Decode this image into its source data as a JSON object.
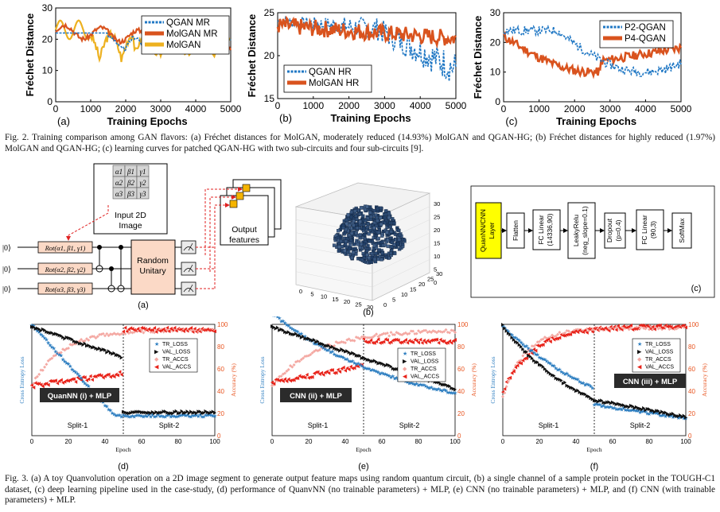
{
  "fig2": {
    "caption": "Fig. 2.  Training comparison among GAN flavors: (a) Fréchet distances for MolGAN, moderately reduced (14.93%) MolGAN and QGAN-HG; (b) Fréchet distances for highly reduced (1.97%) MolGAN and QGAN-HG; (c) learning curves for patched QGAN-HG with two sub-circuits and four sub-circuits [9].",
    "panels": [
      {
        "label": "(a)",
        "ylabel": "Fréchet Distance",
        "xlabel": "Training Epochs",
        "yticks": [
          "0",
          "10",
          "20",
          "30"
        ],
        "xticks": [
          "0",
          "1000",
          "2000",
          "3000",
          "4000",
          "5000"
        ],
        "legend": [
          "QGAN MR",
          "MolGAN MR",
          "MolGAN"
        ]
      },
      {
        "label": "(b)",
        "ylabel": "Fréchet Distance",
        "xlabel": "Training Epochs",
        "yticks": [
          "15",
          "20",
          "25"
        ],
        "xticks": [
          "0",
          "1000",
          "2000",
          "3000",
          "4000",
          "5000"
        ],
        "legend": [
          "QGAN HR",
          "MolGAN HR"
        ]
      },
      {
        "label": "(c)",
        "ylabel": "Fréchet Distance",
        "xlabel": "Training Epochs",
        "yticks": [
          "0",
          "10",
          "20",
          "30"
        ],
        "xticks": [
          "0",
          "1000",
          "2000",
          "3000",
          "4000",
          "5000"
        ],
        "legend": [
          "P2-QGAN",
          "P4-QGAN"
        ]
      }
    ]
  },
  "fig3": {
    "caption": "Fig. 3.  (a) A toy Quanvolution operation on a 2D image segment to generate output feature maps using random quantum circuit, (b) a single channel of a sample protein pocket in the TOUGH-C1 dataset, (c) deep learning pipeline used in the case-study, (d) performance of QuanvNN (no trainable parameters) + MLP, (e) CNN (no trainable parameters) + MLP, and (f) CNN (with trainable parameters) + MLP.",
    "a": {
      "matrix": [
        [
          "α1",
          "β1",
          "γ1"
        ],
        [
          "α2",
          "β2",
          "γ2"
        ],
        [
          "α3",
          "β3",
          "γ3"
        ]
      ],
      "input_label": "Input 2D Image",
      "kets": [
        "|0⟩",
        "|0⟩",
        "|0⟩"
      ],
      "gates": [
        "Rot(α1, β1, γ1)",
        "Rot(α2, β2, γ2)",
        "Rot(α3, β3, γ3)"
      ],
      "unitary": "Random Unitary",
      "output_label": "Output features",
      "label": "(a)"
    },
    "b": {
      "label": "(b)",
      "zticks": [
        "0",
        "5",
        "10",
        "15",
        "20",
        "25",
        "30"
      ],
      "xticks": [
        "0",
        "5",
        "10",
        "15",
        "20",
        "25",
        "30"
      ],
      "yticks": [
        "0",
        "5",
        "10",
        "15",
        "20",
        "25",
        "30"
      ]
    },
    "c": {
      "label": "(c)",
      "blocks": [
        "QuanNN/CNN Layer",
        "Flatten",
        "FC Linear (14336,90)",
        "LeakyRelu (neg_slope=0.1)",
        "Dropout (p=0.4)",
        "FC Linear (90,3)",
        "SoftMax"
      ]
    },
    "d_panels": [
      {
        "label": "(d)",
        "title": "QuanNN (i) + MLP",
        "split1": "Split-1",
        "split2": "Split-2"
      },
      {
        "label": "(e)",
        "title": "CNN (ii) + MLP",
        "split1": "Split-1",
        "split2": "Split-2"
      },
      {
        "label": "(f)",
        "title": "CNN (iii) + MLP",
        "split1": "Split-1",
        "split2": "Split-2"
      }
    ],
    "d_common": {
      "ylabel_left": "Cross Entropy Loss",
      "ylabel_right": "Accuracy (%)",
      "xlabel": "Epoch",
      "xticks": [
        "0",
        "20",
        "40",
        "60",
        "80",
        "100"
      ],
      "yticks_right": [
        "0",
        "20",
        "40",
        "60",
        "80",
        "100"
      ],
      "legend": [
        "TR_LOSS",
        "VAL_LOSS",
        "TR_ACCS",
        "VAL_ACCS"
      ]
    }
  },
  "colors": {
    "qgan_blue": "#1f77c4",
    "molgan_orange": "#d9531e",
    "molgan_yellow": "#edb120",
    "tr_loss": "#2f7fc1",
    "val_loss": "#111111",
    "tr_acc": "#f4a9a3",
    "val_acc": "#e8231a",
    "accent_right": "#e8531e",
    "quan_yellow": "#ffff00"
  }
}
